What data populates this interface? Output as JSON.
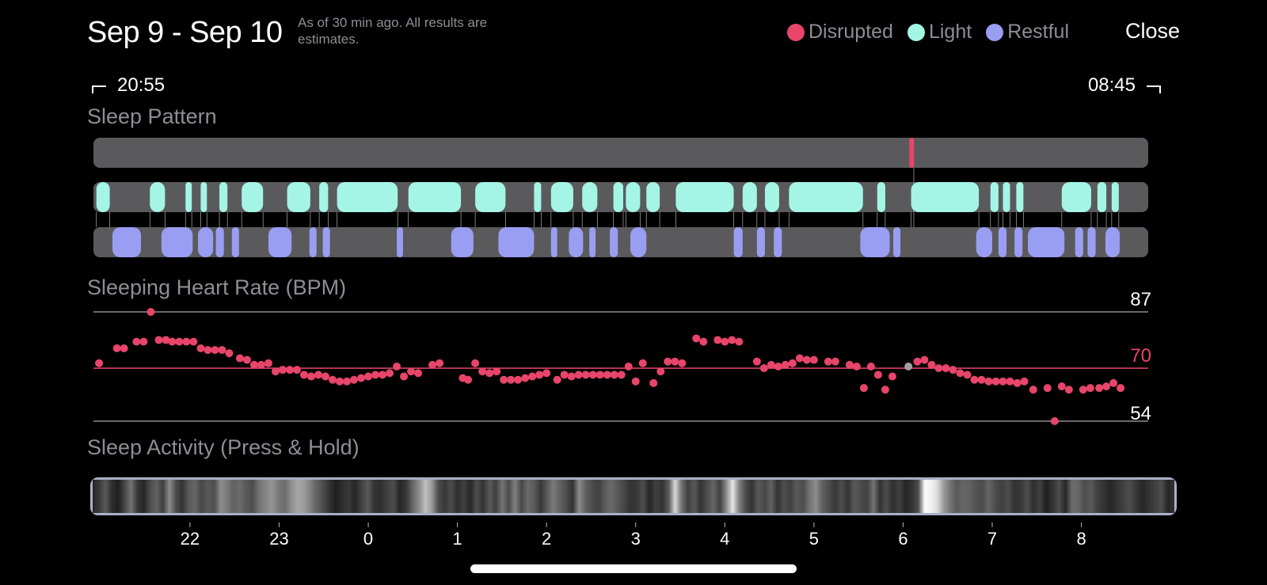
{
  "header": {
    "date_range": "Sep 9 - Sep 10",
    "estimate_note": "As of 30 min ago. All results are estimates.",
    "close_label": "Close"
  },
  "legend": [
    {
      "label": "Disrupted",
      "color": "#e8456a"
    },
    {
      "label": "Light",
      "color": "#a4f5e6"
    },
    {
      "label": "Restful",
      "color": "#9a9ef2"
    }
  ],
  "time_range": {
    "start": "20:55",
    "end": "08:45"
  },
  "sections": {
    "sleep_pattern": "Sleep Pattern",
    "heart_rate": "Sleeping Heart Rate (BPM)",
    "activity": "Sleep Activity (Press & Hold)"
  },
  "sleep_pattern": {
    "disrupted": [
      [
        6.07,
        6.12
      ]
    ],
    "light": [
      [
        -3.05,
        -2.9
      ],
      [
        -2.45,
        -2.28
      ],
      [
        -2.05,
        -1.98
      ],
      [
        -1.88,
        -1.81
      ],
      [
        -1.67,
        -1.58
      ],
      [
        -1.42,
        -1.18
      ],
      [
        -0.91,
        -0.65
      ],
      [
        -0.55,
        -0.45
      ],
      [
        -0.35,
        0.33
      ],
      [
        0.45,
        1.04
      ],
      [
        1.2,
        1.54
      ],
      [
        1.86,
        1.94
      ],
      [
        2.05,
        2.3
      ],
      [
        2.4,
        2.57
      ],
      [
        2.75,
        2.86
      ],
      [
        2.89,
        3.05
      ],
      [
        3.12,
        3.27
      ],
      [
        3.45,
        4.1
      ],
      [
        4.2,
        4.36
      ],
      [
        4.45,
        4.61
      ],
      [
        4.72,
        5.55
      ],
      [
        5.71,
        5.8
      ],
      [
        6.09,
        6.85
      ],
      [
        6.98,
        7.07
      ],
      [
        7.12,
        7.2
      ],
      [
        7.27,
        7.35
      ],
      [
        7.78,
        8.11
      ],
      [
        8.18,
        8.28
      ],
      [
        8.34,
        8.42
      ]
    ],
    "restful": [
      [
        -2.87,
        -2.55
      ],
      [
        -2.32,
        -1.97
      ],
      [
        -1.91,
        -1.74
      ],
      [
        -1.71,
        -1.62
      ],
      [
        -1.53,
        -1.45
      ],
      [
        -1.12,
        -0.86
      ],
      [
        -0.66,
        -0.58
      ],
      [
        -0.51,
        -0.43
      ],
      [
        0.32,
        0.39
      ],
      [
        0.93,
        1.18
      ],
      [
        1.46,
        1.86
      ],
      [
        2.05,
        2.12
      ],
      [
        2.25,
        2.41
      ],
      [
        2.48,
        2.55
      ],
      [
        2.71,
        2.8
      ],
      [
        2.94,
        3.12
      ],
      [
        4.1,
        4.2
      ],
      [
        4.36,
        4.45
      ],
      [
        4.55,
        4.64
      ],
      [
        5.52,
        5.85
      ],
      [
        5.89,
        5.97
      ],
      [
        6.82,
        7.0
      ],
      [
        7.07,
        7.16
      ],
      [
        7.25,
        7.34
      ],
      [
        7.4,
        7.81
      ],
      [
        7.93,
        8.02
      ],
      [
        8.07,
        8.16
      ],
      [
        8.27,
        8.43
      ]
    ]
  },
  "heart_rate": {
    "max_label": "87",
    "avg_label": "70",
    "min_label": "54",
    "y_max": 87,
    "y_avg": 70,
    "y_min": 54,
    "points": [
      [
        -3.02,
        71.5
      ],
      [
        -2.82,
        76
      ],
      [
        -2.74,
        76
      ],
      [
        -2.6,
        78
      ],
      [
        -2.52,
        78
      ],
      [
        -2.44,
        87
      ],
      [
        -2.35,
        78.5
      ],
      [
        -2.27,
        78.5
      ],
      [
        -2.2,
        78
      ],
      [
        -2.12,
        78
      ],
      [
        -2.04,
        78
      ],
      [
        -1.96,
        78
      ],
      [
        -1.88,
        76
      ],
      [
        -1.8,
        75.5
      ],
      [
        -1.72,
        75.5
      ],
      [
        -1.64,
        75.5
      ],
      [
        -1.56,
        74.5
      ],
      [
        -1.44,
        73
      ],
      [
        -1.36,
        72.5
      ],
      [
        -1.28,
        71
      ],
      [
        -1.2,
        71
      ],
      [
        -1.12,
        71.5
      ],
      [
        -1.04,
        69
      ],
      [
        -0.96,
        69.5
      ],
      [
        -0.88,
        69.5
      ],
      [
        -0.8,
        69.5
      ],
      [
        -0.72,
        68
      ],
      [
        -0.64,
        67.5
      ],
      [
        -0.56,
        68
      ],
      [
        -0.48,
        67.5
      ],
      [
        -0.4,
        66.5
      ],
      [
        -0.32,
        66
      ],
      [
        -0.24,
        66
      ],
      [
        -0.16,
        66.5
      ],
      [
        -0.08,
        67
      ],
      [
        0.0,
        67.5
      ],
      [
        0.08,
        68
      ],
      [
        0.16,
        68
      ],
      [
        0.24,
        68.5
      ],
      [
        0.32,
        70.5
      ],
      [
        0.4,
        67.5
      ],
      [
        0.48,
        69
      ],
      [
        0.56,
        68.5
      ],
      [
        0.72,
        71
      ],
      [
        0.8,
        71.5
      ],
      [
        1.06,
        67
      ],
      [
        1.12,
        66.5
      ],
      [
        1.2,
        71.5
      ],
      [
        1.28,
        69
      ],
      [
        1.36,
        68.5
      ],
      [
        1.44,
        69
      ],
      [
        1.52,
        66.5
      ],
      [
        1.6,
        66.5
      ],
      [
        1.68,
        66.5
      ],
      [
        1.76,
        67
      ],
      [
        1.84,
        67.5
      ],
      [
        1.92,
        68
      ],
      [
        2.0,
        68.5
      ],
      [
        2.12,
        66.5
      ],
      [
        2.2,
        68
      ],
      [
        2.28,
        67.5
      ],
      [
        2.36,
        68
      ],
      [
        2.44,
        68
      ],
      [
        2.52,
        68
      ],
      [
        2.6,
        68
      ],
      [
        2.68,
        68
      ],
      [
        2.76,
        68
      ],
      [
        2.84,
        68
      ],
      [
        2.92,
        70.5
      ],
      [
        3.0,
        66
      ],
      [
        3.08,
        71.5
      ],
      [
        3.2,
        65.5
      ],
      [
        3.28,
        69
      ],
      [
        3.36,
        72
      ],
      [
        3.44,
        72
      ],
      [
        3.52,
        71.5
      ],
      [
        3.68,
        79
      ],
      [
        3.76,
        78
      ],
      [
        3.92,
        78.5
      ],
      [
        4.0,
        78
      ],
      [
        4.08,
        78.5
      ],
      [
        4.16,
        78
      ],
      [
        4.36,
        72
      ],
      [
        4.44,
        70
      ],
      [
        4.52,
        71
      ],
      [
        4.6,
        70.5
      ],
      [
        4.68,
        71
      ],
      [
        4.76,
        71.5
      ],
      [
        4.84,
        73
      ],
      [
        4.92,
        72.5
      ],
      [
        5.0,
        72.5
      ],
      [
        5.16,
        72
      ],
      [
        5.24,
        72
      ],
      [
        5.4,
        71
      ],
      [
        5.48,
        70.5
      ],
      [
        5.56,
        64
      ],
      [
        5.64,
        70.5
      ],
      [
        5.72,
        68
      ],
      [
        5.8,
        63.5
      ],
      [
        5.88,
        67.5
      ],
      [
        6.06,
        70.5
      ],
      [
        6.16,
        72
      ],
      [
        6.24,
        72.5
      ],
      [
        6.32,
        71
      ],
      [
        6.4,
        70
      ],
      [
        6.48,
        70
      ],
      [
        6.56,
        69.5
      ],
      [
        6.64,
        68.5
      ],
      [
        6.72,
        68
      ],
      [
        6.8,
        66.5
      ],
      [
        6.88,
        66.5
      ],
      [
        6.96,
        66
      ],
      [
        7.04,
        66
      ],
      [
        7.12,
        66
      ],
      [
        7.2,
        66
      ],
      [
        7.28,
        65.5
      ],
      [
        7.36,
        66
      ],
      [
        7.46,
        63.5
      ],
      [
        7.62,
        64
      ],
      [
        7.7,
        54
      ],
      [
        7.78,
        64.5
      ],
      [
        7.86,
        63.5
      ],
      [
        8.02,
        63.5
      ],
      [
        8.1,
        64
      ],
      [
        8.2,
        64
      ],
      [
        8.28,
        64.5
      ],
      [
        8.36,
        65.5
      ],
      [
        8.44,
        64
      ]
    ]
  },
  "activity": {
    "intensities": [
      0.15,
      0.22,
      0.35,
      0.18,
      0.12,
      0.28,
      0.45,
      0.22,
      0.15,
      0.3,
      0.38,
      0.25,
      0.55,
      0.3,
      0.2,
      0.35,
      0.4,
      0.28,
      0.35,
      0.3,
      0.55,
      0.48,
      0.38,
      0.42,
      0.35,
      0.3,
      0.45,
      0.52,
      0.58,
      0.48,
      0.42,
      0.55,
      0.65,
      0.62,
      0.5,
      0.38,
      0.3,
      0.2,
      0.12,
      0.18,
      0.22,
      0.15,
      0.25,
      0.35,
      0.2,
      0.18,
      0.25,
      0.3,
      0.15,
      0.22,
      0.4,
      0.55,
      0.75,
      0.6,
      0.3,
      0.22,
      0.3,
      0.18,
      0.25,
      0.15,
      0.3,
      0.2,
      0.35,
      0.25,
      0.45,
      0.3,
      0.5,
      0.28,
      0.42,
      0.35,
      0.22,
      0.35,
      0.48,
      0.38,
      0.3,
      0.2,
      0.55,
      0.38,
      0.3,
      0.25,
      0.35,
      0.42,
      0.35,
      0.28,
      0.2,
      0.22,
      0.3,
      0.15,
      0.25,
      0.2,
      0.35,
      0.85,
      0.45,
      0.25,
      0.35,
      0.2,
      0.3,
      0.4,
      0.25,
      0.55,
      0.9,
      0.5,
      0.3,
      0.2,
      0.35,
      0.28,
      0.38,
      0.2,
      0.3,
      0.25,
      0.35,
      0.3,
      0.45,
      0.55,
      0.38,
      0.3,
      0.22,
      0.3,
      0.2,
      0.35,
      0.3,
      0.25,
      0.45,
      0.2,
      0.3,
      0.18,
      0.25,
      0.15,
      0.2,
      0.3,
      0.98,
      0.95,
      0.85,
      0.6,
      0.45,
      0.35,
      0.4,
      0.38,
      0.32,
      0.3,
      0.4,
      0.3,
      0.25,
      0.3,
      0.2,
      0.22,
      0.3,
      0.18,
      0.25,
      0.12,
      0.2,
      0.3,
      0.15,
      0.42,
      0.4,
      0.3,
      0.35,
      0.25,
      0.2,
      0.15,
      0.2,
      0.25,
      0.3,
      0.22,
      0.15,
      0.2,
      0.25,
      0.3,
      0.15,
      0.2
    ]
  },
  "axis": {
    "hours": [
      {
        "label": "22",
        "value": -2
      },
      {
        "label": "23",
        "value": -1
      },
      {
        "label": "0",
        "value": 0
      },
      {
        "label": "1",
        "value": 1
      },
      {
        "label": "2",
        "value": 2
      },
      {
        "label": "3",
        "value": 3
      },
      {
        "label": "4",
        "value": 4
      },
      {
        "label": "5",
        "value": 5
      },
      {
        "label": "6",
        "value": 6
      },
      {
        "label": "7",
        "value": 7
      },
      {
        "label": "8",
        "value": 8
      }
    ],
    "range": [
      -3.083,
      8.75
    ]
  },
  "colors": {
    "disrupted": "#e8456a",
    "light": "#a4f5e6",
    "restful": "#9a9ef2",
    "track": "#5a5a5c",
    "heart": "#e8456a",
    "highlight": "#a0a0a0"
  }
}
